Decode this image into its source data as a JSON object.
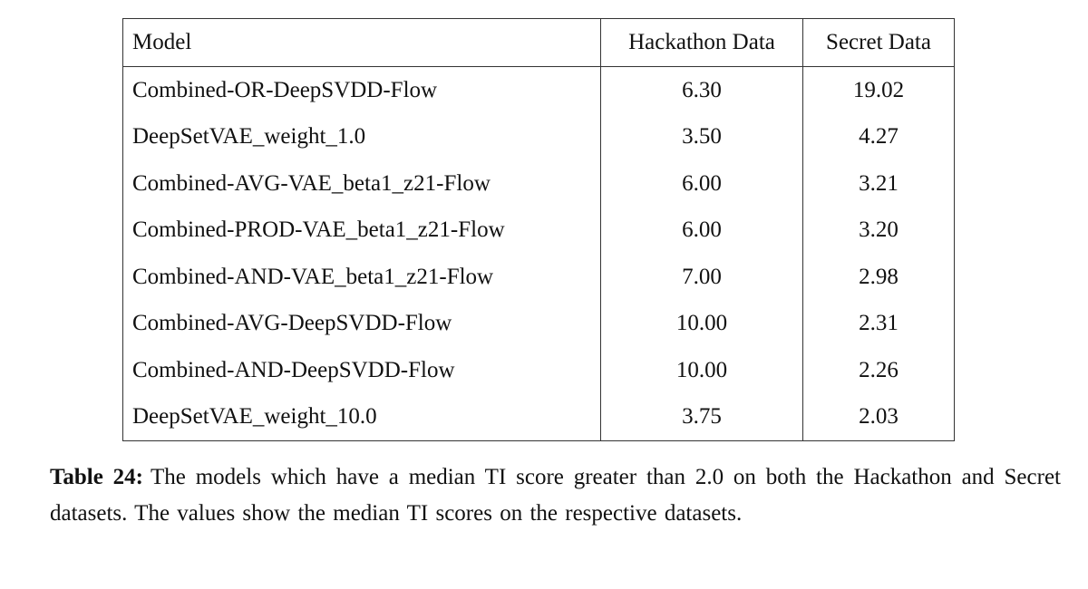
{
  "table": {
    "header": [
      "Model",
      "Hackathon Data",
      "Secret Data"
    ],
    "rows": [
      [
        "Combined-OR-DeepSVDD-Flow",
        "6.30",
        "19.02"
      ],
      [
        "DeepSetVAE_weight_1.0",
        "3.50",
        "4.27"
      ],
      [
        "Combined-AVG-VAE_beta1_z21-Flow",
        "6.00",
        "3.21"
      ],
      [
        "Combined-PROD-VAE_beta1_z21-Flow",
        "6.00",
        "3.20"
      ],
      [
        "Combined-AND-VAE_beta1_z21-Flow",
        "7.00",
        "2.98"
      ],
      [
        "Combined-AVG-DeepSVDD-Flow",
        "10.00",
        "2.31"
      ],
      [
        "Combined-AND-DeepSVDD-Flow",
        "10.00",
        "2.26"
      ],
      [
        "DeepSetVAE_weight_10.0",
        "3.75",
        "2.03"
      ]
    ]
  },
  "caption": {
    "label": "Table 24:",
    "text": "The models which have a median TI score greater than 2.0 on both the Hackathon and Secret datasets. The values show the median TI scores on the respective datasets."
  }
}
